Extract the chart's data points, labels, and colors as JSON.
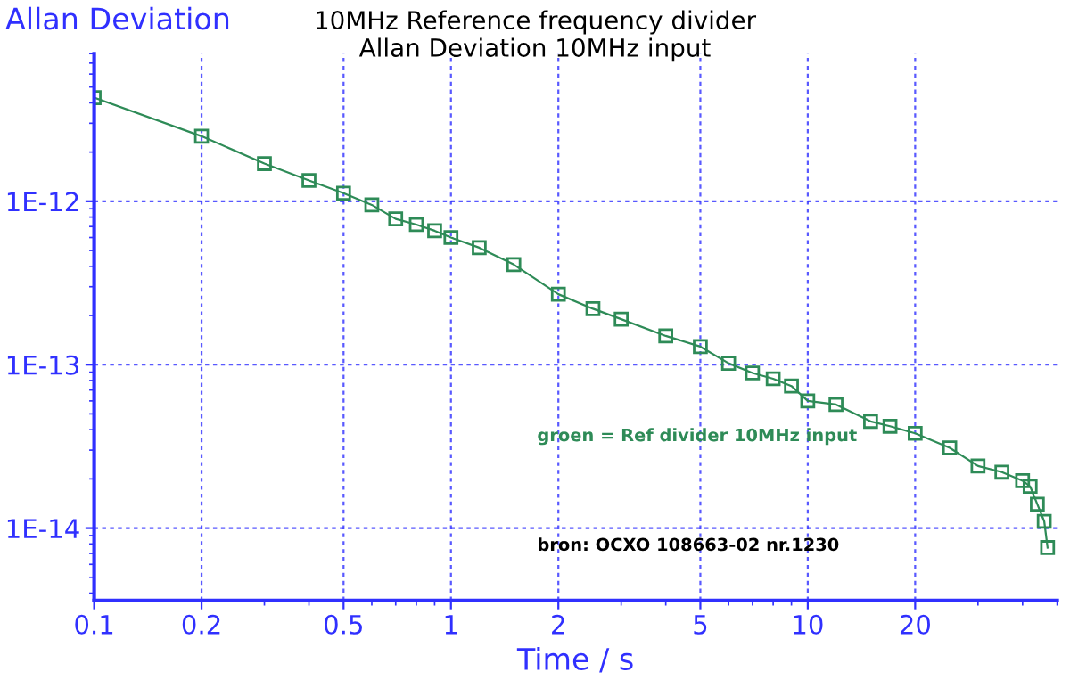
{
  "chart_data": {
    "type": "line",
    "title": "10MHz Reference frequency divider",
    "subtitle": "Allan Deviation 10MHz input",
    "xlabel": "Time / s",
    "ylabel": "Allan Deviation",
    "annotations": [
      "groen = Ref divider 10MHz input",
      "bron: OCXO 108663-02 nr.1230"
    ],
    "log": "xy",
    "grid": true,
    "marker": "square",
    "line_style": "solid",
    "xlim": [
      0.1,
      50
    ],
    "xticks": [
      0.1,
      0.2,
      0.5,
      1,
      2,
      5,
      10,
      20
    ],
    "ylim": [
      3.6e-15,
      8e-12
    ],
    "yticks": [
      {
        "value": 1e-14,
        "label": "1E-14"
      },
      {
        "value": 1e-13,
        "label": "1E-13"
      },
      {
        "value": 1e-12,
        "label": "1E-12"
      }
    ],
    "x": [
      0.1,
      0.2,
      0.3,
      0.4,
      0.5,
      0.6,
      0.7,
      0.8,
      0.9,
      1.0,
      1.2,
      1.5,
      2,
      2.5,
      3,
      4,
      5,
      6,
      7,
      8,
      9,
      10,
      12,
      15,
      17,
      20,
      25,
      30,
      35,
      40,
      42,
      44,
      46,
      47
    ],
    "series": [
      {
        "color": "#2e8b57",
        "values": [
          4.3e-12,
          2.5e-12,
          1.7e-12,
          1.34e-12,
          1.12e-12,
          9.5e-13,
          7.8e-13,
          7.2e-13,
          6.6e-13,
          6e-13,
          5.2e-13,
          4.1e-13,
          2.7e-13,
          2.2e-13,
          1.9e-13,
          1.5e-13,
          1.29e-13,
          1.02e-13,
          8.9e-14,
          8.2e-14,
          7.4e-14,
          6e-14,
          5.7e-14,
          4.5e-14,
          4.2e-14,
          3.8e-14,
          3.1e-14,
          2.4e-14,
          2.2e-14,
          1.95e-14,
          1.8e-14,
          1.4e-14,
          1.1e-14,
          7.6e-15
        ]
      }
    ]
  }
}
